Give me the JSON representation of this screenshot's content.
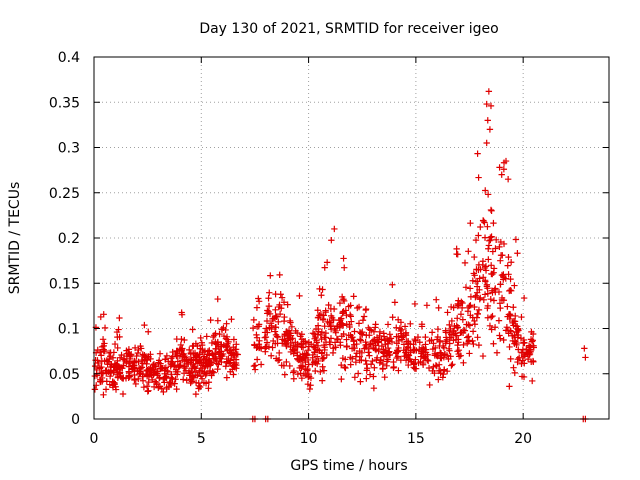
{
  "chart_data": {
    "type": "scatter",
    "title": "Day 130 of 2021, SRMTID for receiver igeo",
    "xlabel": "GPS time / hours",
    "ylabel": "SRMTID / TECUs",
    "xlim": [
      0,
      24
    ],
    "ylim": [
      0,
      0.4
    ],
    "x_ticks": [
      0,
      5,
      10,
      15,
      20
    ],
    "x_tick_labels": [
      "0",
      "5",
      "10",
      "15",
      "20"
    ],
    "y_ticks": [
      0,
      0.05,
      0.1,
      0.15,
      0.2,
      0.25,
      0.3,
      0.35,
      0.4
    ],
    "y_tick_labels": [
      "0",
      "0.05",
      "0.1",
      "0.15",
      "0.2",
      "0.25",
      "0.3",
      "0.35",
      "0.4"
    ],
    "grid": true,
    "marker": "+",
    "color": "#e00000",
    "series": [
      {
        "name": "SRMTID",
        "profile": [
          {
            "x": 0.0,
            "median": 0.055,
            "spread": 0.025
          },
          {
            "x": 0.5,
            "median": 0.065,
            "spread": 0.035
          },
          {
            "x": 1.0,
            "median": 0.05,
            "spread": 0.03
          },
          {
            "x": 1.5,
            "median": 0.06,
            "spread": 0.025
          },
          {
            "x": 2.0,
            "median": 0.06,
            "spread": 0.025
          },
          {
            "x": 3.0,
            "median": 0.045,
            "spread": 0.02
          },
          {
            "x": 3.5,
            "median": 0.05,
            "spread": 0.02
          },
          {
            "x": 4.0,
            "median": 0.065,
            "spread": 0.025
          },
          {
            "x": 4.5,
            "median": 0.06,
            "spread": 0.025
          },
          {
            "x": 5.0,
            "median": 0.06,
            "spread": 0.03
          },
          {
            "x": 5.5,
            "median": 0.07,
            "spread": 0.03
          },
          {
            "x": 6.0,
            "median": 0.075,
            "spread": 0.03
          },
          {
            "x": 6.5,
            "median": 0.065,
            "spread": 0.02
          },
          {
            "x": 7.5,
            "median": 0.09,
            "spread": 0.05
          },
          {
            "x": 8.0,
            "median": 0.1,
            "spread": 0.045
          },
          {
            "x": 8.5,
            "median": 0.095,
            "spread": 0.04
          },
          {
            "x": 9.0,
            "median": 0.09,
            "spread": 0.035
          },
          {
            "x": 9.5,
            "median": 0.075,
            "spread": 0.03
          },
          {
            "x": 10.0,
            "median": 0.06,
            "spread": 0.03
          },
          {
            "x": 10.5,
            "median": 0.085,
            "spread": 0.045
          },
          {
            "x": 11.0,
            "median": 0.1,
            "spread": 0.05
          },
          {
            "x": 11.5,
            "median": 0.09,
            "spread": 0.045
          },
          {
            "x": 12.0,
            "median": 0.095,
            "spread": 0.045
          },
          {
            "x": 12.5,
            "median": 0.085,
            "spread": 0.045
          },
          {
            "x": 13.0,
            "median": 0.08,
            "spread": 0.04
          },
          {
            "x": 13.5,
            "median": 0.07,
            "spread": 0.03
          },
          {
            "x": 14.0,
            "median": 0.085,
            "spread": 0.035
          },
          {
            "x": 14.5,
            "median": 0.075,
            "spread": 0.03
          },
          {
            "x": 15.0,
            "median": 0.075,
            "spread": 0.03
          },
          {
            "x": 15.5,
            "median": 0.07,
            "spread": 0.03
          },
          {
            "x": 16.0,
            "median": 0.075,
            "spread": 0.035
          },
          {
            "x": 16.5,
            "median": 0.085,
            "spread": 0.04
          },
          {
            "x": 17.0,
            "median": 0.1,
            "spread": 0.04
          },
          {
            "x": 17.5,
            "median": 0.11,
            "spread": 0.045
          },
          {
            "x": 18.0,
            "median": 0.15,
            "spread": 0.08
          },
          {
            "x": 18.5,
            "median": 0.17,
            "spread": 0.1
          },
          {
            "x": 19.0,
            "median": 0.14,
            "spread": 0.08
          },
          {
            "x": 19.5,
            "median": 0.1,
            "spread": 0.06
          },
          {
            "x": 20.0,
            "median": 0.07,
            "spread": 0.03
          },
          {
            "x": 20.5,
            "median": 0.075,
            "spread": 0.03
          }
        ],
        "gaps": [
          [
            6.7,
            7.4
          ],
          [
            7.8,
            7.95
          ]
        ],
        "extra_points": [
          {
            "x": 7.4,
            "y": 0.0
          },
          {
            "x": 7.5,
            "y": 0.0
          },
          {
            "x": 8.0,
            "y": 0.0
          },
          {
            "x": 8.1,
            "y": 0.0
          },
          {
            "x": 22.8,
            "y": 0.0
          },
          {
            "x": 22.9,
            "y": 0.0
          },
          {
            "x": 22.85,
            "y": 0.078
          },
          {
            "x": 22.9,
            "y": 0.068
          },
          {
            "x": 18.4,
            "y": 0.362
          },
          {
            "x": 18.3,
            "y": 0.348
          },
          {
            "x": 18.5,
            "y": 0.346
          },
          {
            "x": 18.35,
            "y": 0.33
          },
          {
            "x": 18.45,
            "y": 0.32
          },
          {
            "x": 18.3,
            "y": 0.305
          },
          {
            "x": 19.2,
            "y": 0.285
          },
          {
            "x": 19.1,
            "y": 0.276
          },
          {
            "x": 18.9,
            "y": 0.278
          },
          {
            "x": 19.3,
            "y": 0.265
          },
          {
            "x": 19.0,
            "y": 0.27
          },
          {
            "x": 11.2,
            "y": 0.21
          },
          {
            "x": 16.9,
            "y": 0.188
          },
          {
            "x": 16.95,
            "y": 0.182
          }
        ]
      }
    ]
  }
}
